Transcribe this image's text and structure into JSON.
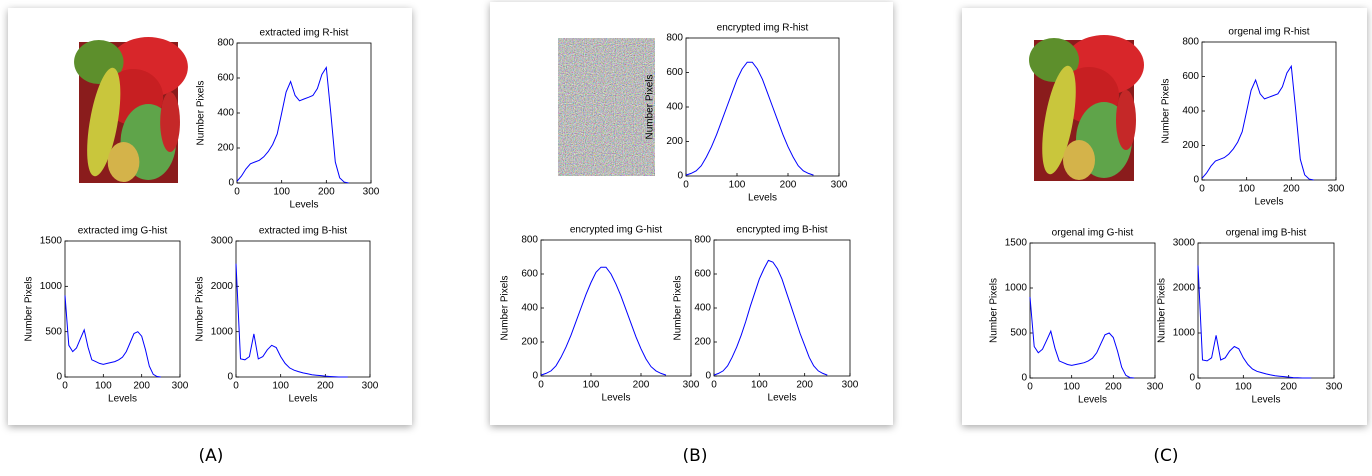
{
  "panels": [
    {
      "caption": "(A)"
    },
    {
      "caption": "(B)"
    },
    {
      "caption": "(C)"
    }
  ],
  "chart_data": [
    {
      "type": "line",
      "title": "extracted img R-hist",
      "x_label": "Levels",
      "y_label": "Number Pixels",
      "color": "#0000ff",
      "x": [
        0,
        10,
        20,
        30,
        40,
        50,
        60,
        70,
        80,
        90,
        100,
        110,
        120,
        130,
        140,
        150,
        160,
        170,
        180,
        190,
        200,
        210,
        220,
        230,
        240,
        250
      ],
      "values": [
        10,
        40,
        80,
        110,
        120,
        130,
        150,
        180,
        220,
        280,
        400,
        520,
        580,
        500,
        470,
        480,
        490,
        500,
        540,
        620,
        660,
        400,
        120,
        30,
        5,
        0
      ],
      "xlim": [
        0,
        300
      ],
      "ylim": [
        0,
        800
      ],
      "xticks": [
        0,
        100,
        200,
        300
      ],
      "yticks": [
        0,
        200,
        400,
        600,
        800
      ]
    },
    {
      "type": "line",
      "title": "extracted img G-hist",
      "x_label": "Levels",
      "y_label": "Number Pixels",
      "color": "#0000ff",
      "x": [
        0,
        10,
        20,
        30,
        40,
        50,
        60,
        70,
        80,
        90,
        100,
        110,
        120,
        130,
        140,
        150,
        160,
        170,
        180,
        190,
        200,
        210,
        220,
        230,
        240,
        250
      ],
      "values": [
        900,
        350,
        280,
        320,
        420,
        520,
        330,
        190,
        170,
        150,
        140,
        150,
        160,
        170,
        190,
        220,
        280,
        380,
        480,
        500,
        450,
        300,
        120,
        30,
        5,
        0
      ],
      "xlim": [
        0,
        300
      ],
      "ylim": [
        0,
        1500
      ],
      "xticks": [
        0,
        100,
        200,
        300
      ],
      "yticks": [
        0,
        500,
        1000,
        1500
      ]
    },
    {
      "type": "line",
      "title": "extracted img B-hist",
      "x_label": "Levels",
      "y_label": "Number Pixels",
      "color": "#0000ff",
      "x": [
        0,
        10,
        20,
        30,
        40,
        50,
        60,
        70,
        80,
        90,
        100,
        110,
        120,
        130,
        140,
        150,
        160,
        170,
        180,
        190,
        200,
        210,
        220,
        230,
        240,
        250
      ],
      "values": [
        2500,
        400,
        380,
        450,
        950,
        400,
        450,
        600,
        700,
        650,
        450,
        300,
        200,
        150,
        120,
        90,
        70,
        50,
        40,
        30,
        20,
        10,
        5,
        0,
        0,
        0
      ],
      "xlim": [
        0,
        300
      ],
      "ylim": [
        0,
        3000
      ],
      "xticks": [
        0,
        100,
        200,
        300
      ],
      "yticks": [
        0,
        1000,
        2000,
        3000
      ]
    },
    {
      "type": "line",
      "title": "encrypted img R-hist",
      "x_label": "Levels",
      "y_label": "Number Pixels",
      "color": "#0000ff",
      "x": [
        0,
        10,
        20,
        30,
        40,
        50,
        60,
        70,
        80,
        90,
        100,
        110,
        120,
        130,
        140,
        150,
        160,
        170,
        180,
        190,
        200,
        210,
        220,
        230,
        240,
        250
      ],
      "values": [
        5,
        15,
        30,
        60,
        110,
        170,
        240,
        320,
        400,
        480,
        560,
        620,
        660,
        660,
        620,
        560,
        480,
        400,
        320,
        240,
        170,
        110,
        60,
        30,
        15,
        5
      ],
      "xlim": [
        0,
        300
      ],
      "ylim": [
        0,
        800
      ],
      "xticks": [
        0,
        100,
        200,
        300
      ],
      "yticks": [
        0,
        200,
        400,
        600,
        800
      ]
    },
    {
      "type": "line",
      "title": "encrypted img G-hist",
      "x_label": "Levels",
      "y_label": "Number Pixels",
      "color": "#0000ff",
      "x": [
        0,
        10,
        20,
        30,
        40,
        50,
        60,
        70,
        80,
        90,
        100,
        110,
        120,
        130,
        140,
        150,
        160,
        170,
        180,
        190,
        200,
        210,
        220,
        230,
        240,
        250
      ],
      "values": [
        5,
        15,
        30,
        60,
        110,
        170,
        240,
        320,
        400,
        480,
        550,
        610,
        640,
        640,
        600,
        540,
        470,
        390,
        310,
        230,
        160,
        100,
        55,
        30,
        15,
        5
      ],
      "xlim": [
        0,
        300
      ],
      "ylim": [
        0,
        800
      ],
      "xticks": [
        0,
        100,
        200,
        300
      ],
      "yticks": [
        0,
        200,
        400,
        600,
        800
      ]
    },
    {
      "type": "line",
      "title": "encrypted img B-hist",
      "x_label": "Levels",
      "y_label": "Number Pixels",
      "color": "#0000ff",
      "x": [
        0,
        10,
        20,
        30,
        40,
        50,
        60,
        70,
        80,
        90,
        100,
        110,
        120,
        130,
        140,
        150,
        160,
        170,
        180,
        190,
        200,
        210,
        220,
        230,
        240,
        250
      ],
      "values": [
        5,
        15,
        30,
        60,
        110,
        170,
        240,
        320,
        410,
        490,
        570,
        630,
        680,
        670,
        630,
        570,
        490,
        410,
        330,
        250,
        180,
        110,
        60,
        30,
        15,
        5
      ],
      "xlim": [
        0,
        300
      ],
      "ylim": [
        0,
        800
      ],
      "xticks": [
        0,
        100,
        200,
        300
      ],
      "yticks": [
        0,
        200,
        400,
        600,
        800
      ]
    },
    {
      "type": "line",
      "title": "orgenal img R-hist",
      "x_label": "Levels",
      "y_label": "Number Pixels",
      "color": "#0000ff",
      "x": [
        0,
        10,
        20,
        30,
        40,
        50,
        60,
        70,
        80,
        90,
        100,
        110,
        120,
        130,
        140,
        150,
        160,
        170,
        180,
        190,
        200,
        210,
        220,
        230,
        240,
        250
      ],
      "values": [
        10,
        40,
        80,
        110,
        120,
        130,
        150,
        180,
        220,
        280,
        400,
        520,
        580,
        500,
        470,
        480,
        490,
        500,
        540,
        620,
        660,
        400,
        120,
        30,
        5,
        0
      ],
      "xlim": [
        0,
        300
      ],
      "ylim": [
        0,
        800
      ],
      "xticks": [
        0,
        100,
        200,
        300
      ],
      "yticks": [
        0,
        200,
        400,
        600,
        800
      ]
    },
    {
      "type": "line",
      "title": "orgenal img G-hist",
      "x_label": "Levels",
      "y_label": "Number Pixels",
      "color": "#0000ff",
      "x": [
        0,
        10,
        20,
        30,
        40,
        50,
        60,
        70,
        80,
        90,
        100,
        110,
        120,
        130,
        140,
        150,
        160,
        170,
        180,
        190,
        200,
        210,
        220,
        230,
        240,
        250
      ],
      "values": [
        900,
        350,
        280,
        320,
        420,
        520,
        330,
        190,
        170,
        150,
        140,
        150,
        160,
        170,
        190,
        220,
        280,
        380,
        480,
        500,
        450,
        300,
        120,
        30,
        5,
        0
      ],
      "xlim": [
        0,
        300
      ],
      "ylim": [
        0,
        1500
      ],
      "xticks": [
        0,
        100,
        200,
        300
      ],
      "yticks": [
        0,
        500,
        1000,
        1500
      ]
    },
    {
      "type": "line",
      "title": "orgenal img B-hist",
      "x_label": "Levels",
      "y_label": "Number Pixels",
      "color": "#0000ff",
      "x": [
        0,
        10,
        20,
        30,
        40,
        50,
        60,
        70,
        80,
        90,
        100,
        110,
        120,
        130,
        140,
        150,
        160,
        170,
        180,
        190,
        200,
        210,
        220,
        230,
        240,
        250
      ],
      "values": [
        2500,
        400,
        380,
        450,
        950,
        400,
        450,
        600,
        700,
        650,
        450,
        300,
        200,
        150,
        120,
        90,
        70,
        50,
        40,
        30,
        20,
        10,
        5,
        0,
        0,
        0
      ],
      "xlim": [
        0,
        300
      ],
      "ylim": [
        0,
        3000
      ],
      "xticks": [
        0,
        100,
        200,
        300
      ],
      "yticks": [
        0,
        1000,
        2000,
        3000
      ]
    }
  ]
}
